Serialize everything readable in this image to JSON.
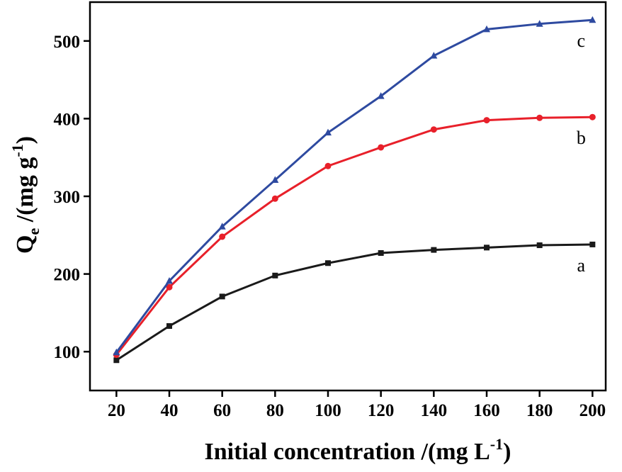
{
  "chart_data": {
    "type": "line",
    "x_label": [
      "Initial concentration /(mg L",
      "-1",
      ")"
    ],
    "y_label": [
      "Q",
      "e",
      " /(mg g",
      "-1",
      ")"
    ],
    "x": [
      20,
      40,
      60,
      80,
      100,
      120,
      140,
      160,
      180,
      200
    ],
    "series": [
      {
        "name": "a",
        "color": "#1a1a1a",
        "marker": "square",
        "values": [
          89,
          133,
          171,
          198,
          214,
          227,
          231,
          234,
          237,
          238
        ]
      },
      {
        "name": "b",
        "color": "#e8202a",
        "marker": "circle",
        "values": [
          96,
          183,
          248,
          297,
          339,
          363,
          386,
          398,
          401,
          402
        ]
      },
      {
        "name": "c",
        "color": "#2e4aa0",
        "marker": "triangle",
        "values": [
          99,
          191,
          261,
          321,
          382,
          429,
          481,
          515,
          522,
          527
        ]
      }
    ],
    "xlim": [
      10,
      205
    ],
    "xticks": [
      20,
      40,
      60,
      80,
      100,
      120,
      140,
      160,
      180,
      200
    ],
    "ylim": [
      50,
      550
    ],
    "yticks": [
      100,
      200,
      300,
      400,
      500
    ],
    "grid": false
  }
}
